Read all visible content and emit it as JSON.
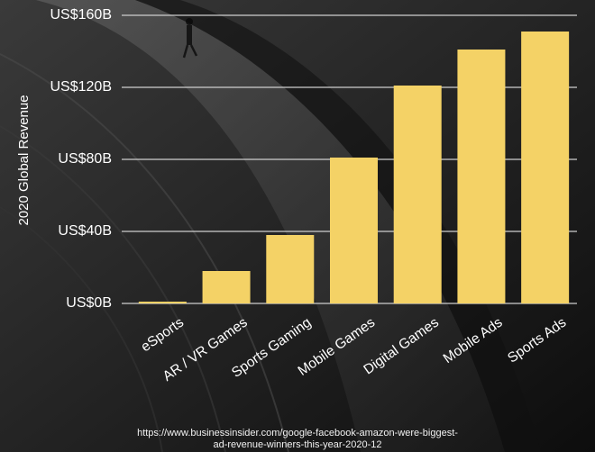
{
  "chart_data": {
    "type": "bar",
    "title": "",
    "xlabel": "",
    "ylabel": "2020 Global Revenue",
    "categories": [
      "eSports",
      "AR / VR Games",
      "Sports Gaming",
      "Mobile Games",
      "Digital Games",
      "Mobile Ads",
      "Sports Ads"
    ],
    "values": [
      1,
      18,
      38,
      81,
      121,
      141,
      151
    ],
    "unit": "billion US$",
    "ylim": [
      0,
      160
    ],
    "yticks": [
      0,
      40,
      80,
      120,
      160
    ],
    "ytick_labels": [
      "US$0B",
      "US$40B",
      "US$80B",
      "US$120B",
      "US$160B"
    ],
    "grid": true,
    "legend": "none"
  },
  "colors": {
    "bar": "#f4d266",
    "text": "#ffffff",
    "grid": "#cfcfcf",
    "background": "#141414"
  },
  "source": {
    "line1": "https://www.businessinsider.com/google-facebook-amazon-were-biggest-",
    "line2": "ad-revenue-winners-this-year-2020-12"
  }
}
